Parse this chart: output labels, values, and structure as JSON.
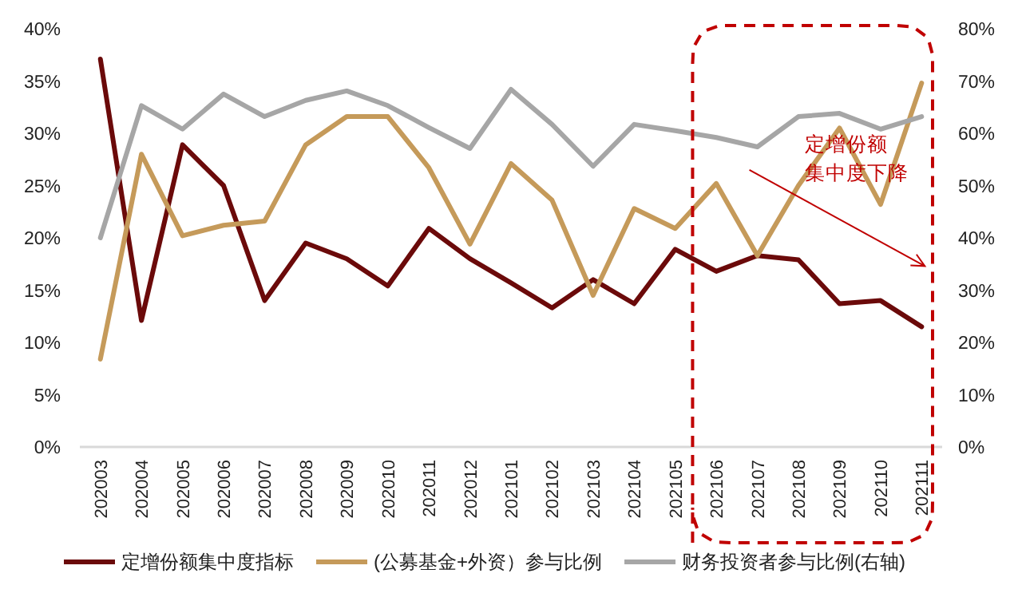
{
  "chart_data": {
    "type": "line",
    "categories": [
      "202003",
      "202004",
      "202005",
      "202006",
      "202007",
      "202008",
      "202009",
      "202010",
      "202011",
      "202012",
      "202101",
      "202102",
      "202103",
      "202104",
      "202105",
      "202106",
      "202107",
      "202108",
      "202109",
      "202110",
      "202111"
    ],
    "series": [
      {
        "name": "定增份额集中度指标",
        "color": "#6b0a0a",
        "values": [
          37.1,
          12.1,
          28.9,
          25.0,
          14.0,
          19.5,
          18.0,
          15.4,
          20.9,
          18.0,
          15.7,
          13.3,
          16.0,
          13.7,
          18.9,
          16.8,
          18.3,
          17.9,
          13.7,
          14.0,
          11.5
        ]
      },
      {
        "name": "(公募基金+外资）参与比例",
        "color": "#c59a5a",
        "values": [
          8.4,
          28.0,
          20.2,
          21.2,
          21.6,
          28.9,
          31.6,
          31.6,
          26.7,
          19.4,
          27.1,
          23.6,
          14.5,
          22.8,
          20.9,
          25.2,
          18.3,
          25.0,
          30.5,
          23.2,
          34.8
        ]
      },
      {
        "name": "财务投资者参与比例(右轴)",
        "color": "#a6a6a6",
        "axis": "y2",
        "values": [
          40.0,
          65.3,
          60.8,
          67.5,
          63.2,
          66.3,
          68.1,
          65.3,
          61.1,
          57.1,
          68.4,
          61.7,
          53.7,
          61.7,
          60.5,
          59.2,
          57.4,
          63.2,
          63.8,
          60.8,
          63.2
        ]
      }
    ],
    "ylim": [
      0,
      40
    ],
    "yticks": [
      {
        "value": 0,
        "label": "0%"
      },
      {
        "value": 5,
        "label": "5%"
      },
      {
        "value": 10,
        "label": "10%"
      },
      {
        "value": 15,
        "label": "15%"
      },
      {
        "value": 20,
        "label": "20%"
      },
      {
        "value": 25,
        "label": "25%"
      },
      {
        "value": 30,
        "label": "30%"
      },
      {
        "value": 35,
        "label": "35%"
      },
      {
        "value": 40,
        "label": "40%"
      }
    ],
    "y2lim": [
      0,
      80
    ],
    "y2ticks": [
      {
        "value": 0,
        "label": "0%"
      },
      {
        "value": 10,
        "label": "10%"
      },
      {
        "value": 20,
        "label": "20%"
      },
      {
        "value": 30,
        "label": "30%"
      },
      {
        "value": 40,
        "label": "40%"
      },
      {
        "value": 50,
        "label": "50%"
      },
      {
        "value": 60,
        "label": "60%"
      },
      {
        "value": 70,
        "label": "70%"
      },
      {
        "value": 80,
        "label": "80%"
      }
    ],
    "annotations": [
      "定增份额",
      "集中度下降"
    ],
    "grid": false,
    "legend": "bottom",
    "marker": "none",
    "line_style": "solid"
  }
}
